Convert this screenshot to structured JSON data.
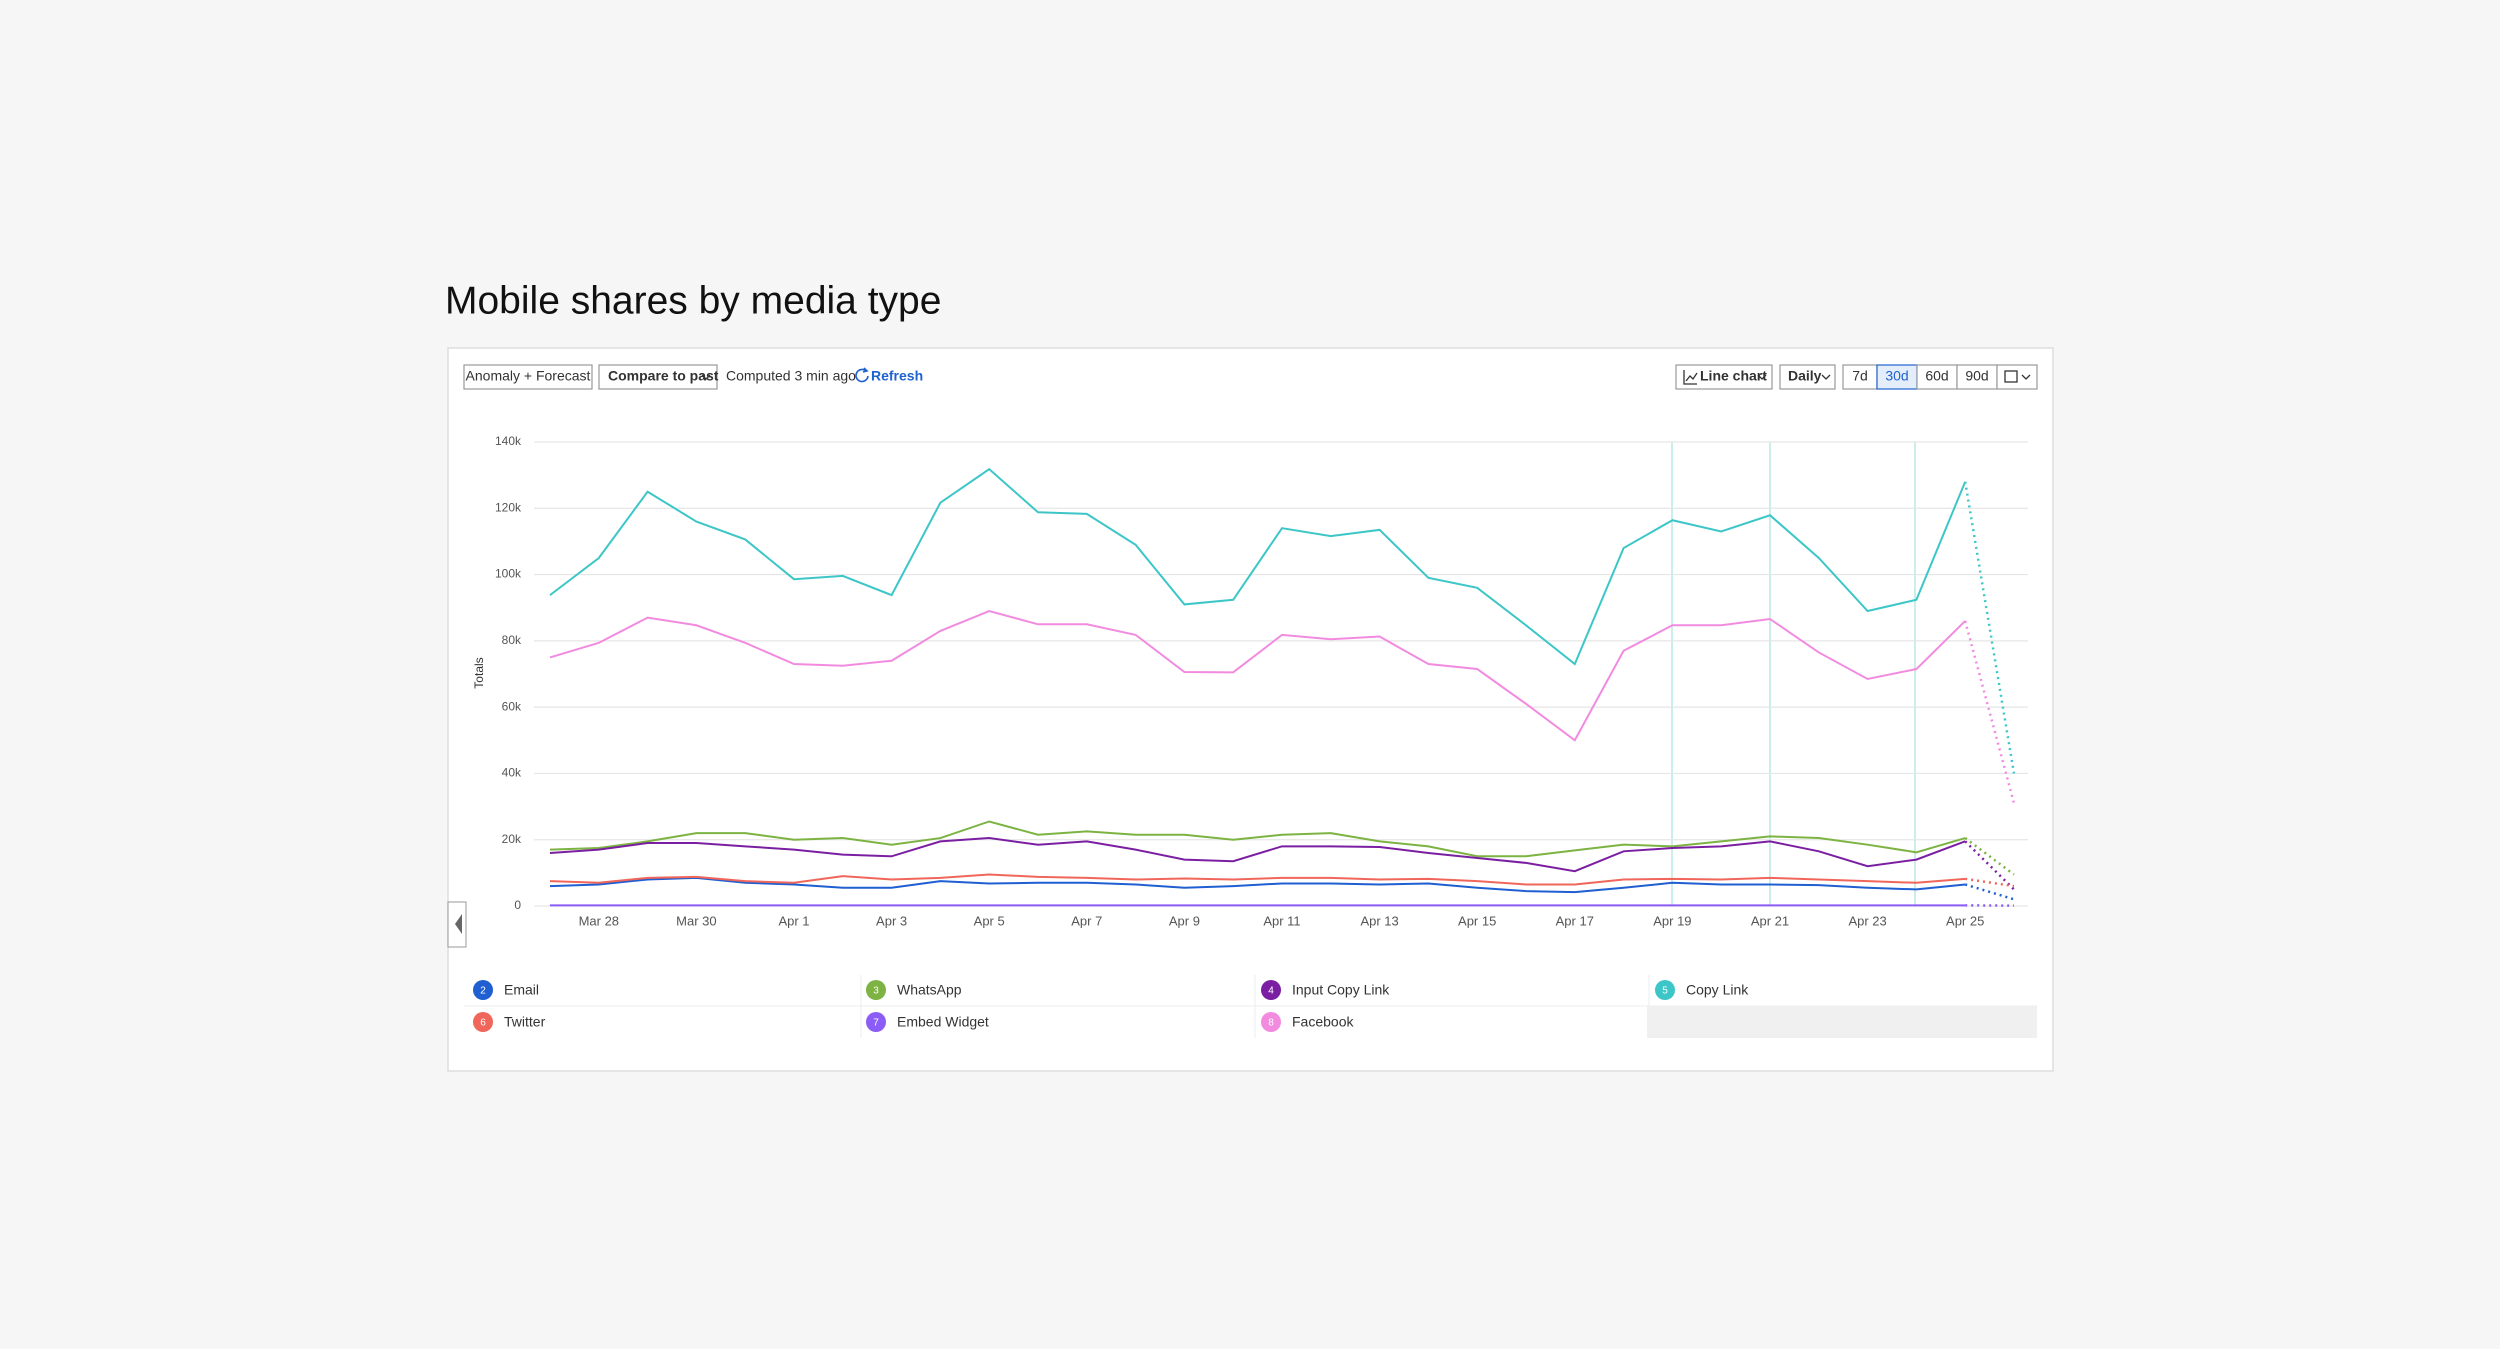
{
  "title": "Mobile shares by media type",
  "toolbar": {
    "anomaly": "Anomaly + Forecast",
    "compare": "Compare to past",
    "computed": "Computed 3 min ago",
    "refresh": "Refresh",
    "chart_type": "Line chart",
    "interval": "Daily",
    "ranges": [
      "7d",
      "30d",
      "60d",
      "90d"
    ],
    "selected_range": 1
  },
  "chart_data": {
    "type": "line",
    "y_label": "Totals",
    "categories": [
      null,
      "Mar 28",
      null,
      "Mar 30",
      null,
      "Apr 1",
      null,
      "Apr 3",
      null,
      "Apr 5",
      null,
      "Apr 7",
      null,
      "Apr 9",
      null,
      "Apr 11",
      null,
      "Apr 13",
      null,
      "Apr 15",
      null,
      "Apr 17",
      null,
      "Apr 19",
      null,
      "Apr 21",
      null,
      "Apr 23",
      null,
      "Apr 25",
      null
    ],
    "forecast_start": 29,
    "ylim": [
      0,
      140000
    ],
    "yticks": [
      0,
      {
        "value": 20000,
        "label": "20k"
      },
      {
        "value": 40000,
        "label": "40k"
      },
      {
        "value": 60000,
        "label": "60k"
      },
      {
        "value": 80000,
        "label": "80k"
      },
      {
        "value": 100000,
        "label": "100k"
      },
      {
        "value": 120000,
        "label": "120k"
      },
      {
        "value": 140000,
        "label": "140k"
      }
    ],
    "grid": true,
    "series": [
      {
        "badge": "2",
        "name": "Email",
        "color": "#1f5fd1",
        "values": [
          6000,
          6500,
          8000,
          8500,
          7000,
          6500,
          5500,
          5500,
          7500,
          6800,
          7000,
          7000,
          6500,
          5500,
          6000,
          6800,
          6800,
          6500,
          6800,
          5500,
          4500,
          4200,
          5500,
          7000,
          6500,
          6500,
          6300,
          5500,
          5000,
          6500,
          2000
        ]
      },
      {
        "badge": "3",
        "name": "WhatsApp",
        "color": "#7cb342",
        "values": [
          17000,
          17500,
          19500,
          22000,
          22000,
          20000,
          20500,
          18500,
          20500,
          25500,
          21500,
          22500,
          21500,
          21500,
          20000,
          21500,
          22000,
          19500,
          18000,
          15000,
          15000,
          16800,
          18500,
          18000,
          19500,
          21000,
          20500,
          18500,
          16200,
          20500,
          9500
        ]
      },
      {
        "badge": "4",
        "name": "Input Copy Link",
        "color": "#7b1fa2",
        "values": [
          16000,
          17000,
          19000,
          19000,
          18000,
          17000,
          15500,
          15000,
          19500,
          20500,
          18500,
          19500,
          17000,
          14000,
          13500,
          18000,
          18000,
          17800,
          16000,
          14500,
          13000,
          10500,
          16500,
          17500,
          18000,
          19500,
          16500,
          12000,
          14000,
          19500,
          5000
        ]
      },
      {
        "badge": "5",
        "name": "Copy Link",
        "color": "#3cc6c8",
        "values": [
          93800,
          105000,
          125000,
          116000,
          110600,
          98600,
          99600,
          93800,
          121700,
          131800,
          118800,
          118300,
          109000,
          91000,
          92400,
          114000,
          111600,
          113500,
          99000,
          96000,
          84700,
          73000,
          108000,
          116400,
          113000,
          117900,
          105000,
          89000,
          92400,
          128000,
          40000
        ]
      },
      {
        "badge": "6",
        "name": "Twitter",
        "color": "#f0665a",
        "values": [
          7500,
          7000,
          8500,
          8800,
          7500,
          7000,
          9000,
          8000,
          8500,
          9500,
          8800,
          8500,
          8000,
          8300,
          8000,
          8500,
          8500,
          8000,
          8200,
          7500,
          6500,
          6500,
          8000,
          8200,
          8000,
          8500,
          8000,
          7500,
          7000,
          8200,
          6000
        ]
      },
      {
        "badge": "7",
        "name": "Embed Widget",
        "color": "#8b5cf6",
        "values": [
          200,
          200,
          200,
          200,
          200,
          200,
          200,
          200,
          200,
          200,
          200,
          200,
          200,
          200,
          200,
          200,
          200,
          200,
          200,
          200,
          200,
          200,
          200,
          200,
          200,
          200,
          200,
          200,
          200,
          200,
          100
        ]
      },
      {
        "badge": "8",
        "name": "Facebook",
        "color": "#f28be0",
        "values": [
          75000,
          79400,
          87000,
          84700,
          79400,
          73000,
          72500,
          74000,
          83000,
          89000,
          85000,
          85000,
          81800,
          70600,
          70500,
          81800,
          80500,
          81300,
          73000,
          71500,
          61000,
          50000,
          77000,
          84700,
          84700,
          86600,
          76500,
          68500,
          71500,
          86000,
          31000
        ]
      }
    ]
  }
}
